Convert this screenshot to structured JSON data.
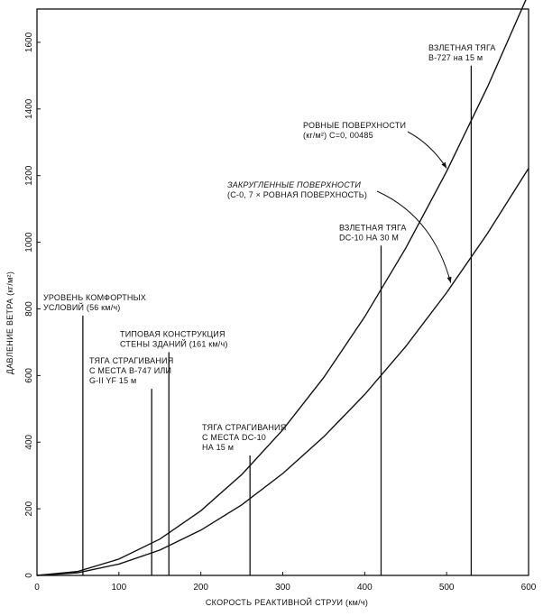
{
  "chart_data": {
    "type": "line",
    "xlabel": "СКОРОСТЬ РЕАКТИВНОЙ СТРУИ (км/ч)",
    "ylabel": "ДАВЛЕНИЕ ВЕТРА (кг/м²)",
    "xlim": [
      0,
      600
    ],
    "ylim": [
      0,
      1700
    ],
    "xticks": [
      0,
      100,
      200,
      300,
      400,
      500,
      600
    ],
    "yticks": [
      0,
      200,
      400,
      600,
      800,
      1000,
      1200,
      1400,
      1600
    ],
    "grid": false,
    "series": [
      {
        "name": "РОВНЫЕ ПОВЕРХНОСТИ (кг/м²) C=0, 00485",
        "x": [
          0,
          50,
          100,
          150,
          200,
          250,
          300,
          350,
          400,
          450,
          500,
          550,
          600
        ],
        "y": [
          0,
          12,
          49,
          109,
          194,
          303,
          437,
          594,
          776,
          982,
          1213,
          1467,
          1746
        ]
      },
      {
        "name": "ЗАКРУГЛЕННЫЕ ПОВЕРХНОСТИ (C-0, 7 × РОВНАЯ ПОВЕРХНОСТЬ)",
        "x": [
          0,
          50,
          100,
          150,
          200,
          250,
          300,
          350,
          400,
          450,
          500,
          550,
          600
        ],
        "y": [
          0,
          8,
          34,
          76,
          136,
          212,
          306,
          416,
          543,
          687,
          849,
          1027,
          1222
        ]
      }
    ],
    "reference_lines": [
      {
        "x": 56,
        "top": 780,
        "lines": [
          "УРОВЕНЬ КОМФОРТНЫХ",
          "УСЛОВИЙ (56 км/ч)"
        ]
      },
      {
        "x": 140,
        "top": 560,
        "lines": [
          "ТЯГА СТРАГИВАНИЯ",
          "С МЕСТА B-747 ИЛИ",
          "G-II YF 15 м"
        ]
      },
      {
        "x": 161,
        "top": 670,
        "lines": [
          "ТИПОВАЯ КОНСТРУКЦИЯ",
          "СТЕНЫ ЗДАНИЙ (161 км/ч)"
        ]
      },
      {
        "x": 260,
        "top": 360,
        "lines": [
          "ТЯГА СТРАГИВАНИЯ",
          "С МЕСТА DC-10",
          "НА 15 м"
        ]
      },
      {
        "x": 420,
        "top": 990,
        "lines": [
          "ВЗЛЕТНАЯ ТЯГА",
          "DC-10 НА 30 М"
        ]
      },
      {
        "x": 530,
        "top": 1530,
        "lines": [
          "ВЗЛЕТНАЯ ТЯГА",
          "B-727 на 15 м"
        ]
      }
    ],
    "curve_labels": [
      {
        "series": 0,
        "lines": [
          "РОВНЫЕ ПОВЕРХНОСТИ",
          "(кг/м²) C=0, 00485"
        ],
        "italic": false
      },
      {
        "series": 1,
        "lines": [
          "ЗАКРУГЛЕННЫЕ ПОВЕРХНОСТИ",
          "(C-0, 7 × РОВНАЯ ПОВЕРХНОСТЬ)"
        ],
        "italic": true
      }
    ]
  }
}
